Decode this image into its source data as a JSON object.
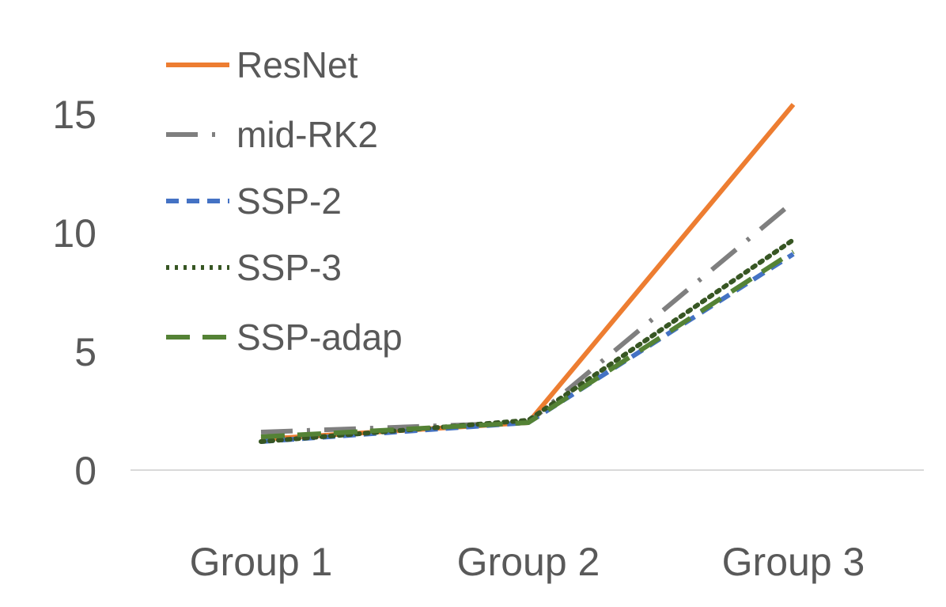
{
  "chart_data": {
    "type": "line",
    "categories": [
      "Group 1",
      "Group 2",
      "Group 3"
    ],
    "yticks": [
      "0",
      "5",
      "10",
      "15"
    ],
    "ylim": [
      0,
      15
    ],
    "grid": false,
    "legend_position": "top-left",
    "series": [
      {
        "name": "ResNet",
        "values": [
          1.3,
          2.0,
          15.4
        ],
        "color": "#ED7D31",
        "dash": "solid"
      },
      {
        "name": "mid-RK2",
        "values": [
          1.6,
          2.0,
          11.3
        ],
        "color": "#7F7F7F",
        "dash": "dash-dot"
      },
      {
        "name": "SSP-2",
        "values": [
          1.2,
          2.0,
          9.1
        ],
        "color": "#4472C4",
        "dash": "dash"
      },
      {
        "name": "SSP-3",
        "values": [
          1.2,
          2.1,
          9.7
        ],
        "color": "#375623",
        "dash": "dot"
      },
      {
        "name": "SSP-adap",
        "values": [
          1.4,
          2.0,
          9.2
        ],
        "color": "#548235",
        "dash": "long-dash"
      }
    ]
  }
}
